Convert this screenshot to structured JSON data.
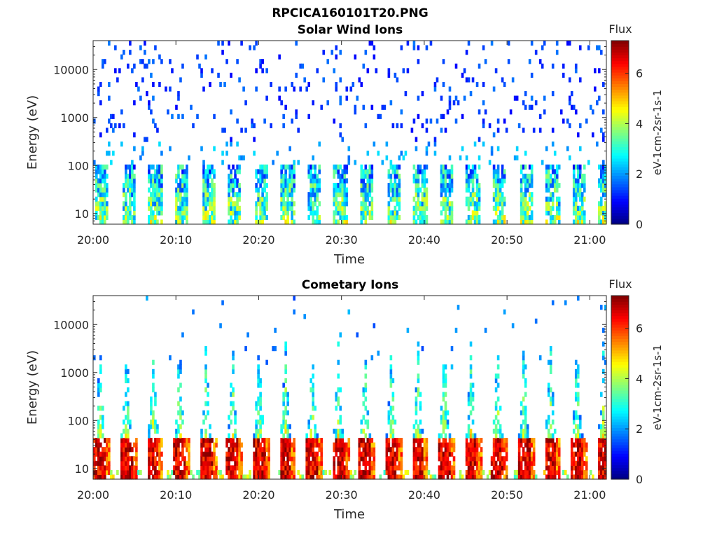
{
  "figure": {
    "title": "RPCICA160101T20.PNG"
  },
  "chart_data": [
    {
      "type": "heatmap",
      "title": "Solar Wind Ions",
      "xlabel": "Time",
      "ylabel": "Energy (eV)",
      "x_ticks": [
        "20:00",
        "20:10",
        "20:20",
        "20:30",
        "20:40",
        "20:50",
        "21:00"
      ],
      "x_range": [
        "20:00",
        "21:02"
      ],
      "y_scale": "log",
      "y_ticks": [
        10,
        100,
        1000,
        10000
      ],
      "y_range": [
        6,
        40000
      ],
      "colorbar": {
        "label": "Flux",
        "unit": "eV-1cm-2sr-1s-1",
        "ticks": [
          0,
          2,
          4,
          6
        ],
        "range": [
          0,
          7.3
        ],
        "colormap": "jet"
      },
      "sweep_period_min": 3.2,
      "pattern": "scattered low-flux counts at 100-30000 eV; periodic moderate flux (2-5) bursts at 6-100 eV"
    },
    {
      "type": "heatmap",
      "title": "Cometary Ions",
      "xlabel": "Time",
      "ylabel": "Energy (eV)",
      "x_ticks": [
        "20:00",
        "20:10",
        "20:20",
        "20:30",
        "20:40",
        "20:50",
        "21:00"
      ],
      "x_range": [
        "20:00",
        "21:02"
      ],
      "y_scale": "log",
      "y_ticks": [
        10,
        100,
        1000,
        10000
      ],
      "y_range": [
        6,
        40000
      ],
      "colorbar": {
        "label": "Flux",
        "unit": "eV-1cm-2sr-1s-1",
        "ticks": [
          0,
          2,
          4,
          6
        ],
        "range": [
          0,
          7.3
        ],
        "colormap": "jet"
      },
      "sweep_period_min": 3.2,
      "pattern": "periodic V-shaped sweeps; high flux (5-7) at 6-45 eV, decreasing to ~2 near 1000-10000 eV"
    }
  ]
}
